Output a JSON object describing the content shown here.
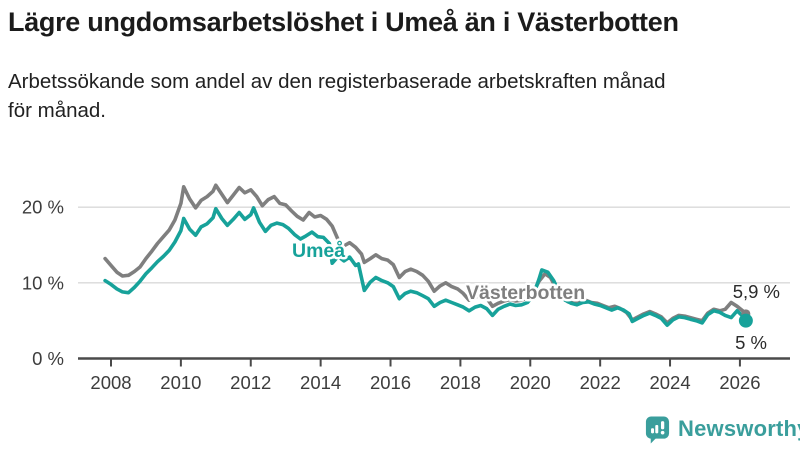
{
  "header": {
    "title": "Lägre ungdomsarbetslöshet i Umeå än i Västerbotten",
    "subtitle_line1": "Arbetssökande som andel av den registerbaserade arbetskraften månad",
    "subtitle_line2": "för månad."
  },
  "branding": {
    "logo_text": "Newsworthy",
    "logo_color": "#3a9e9c"
  },
  "colors": {
    "background": "#ffffff",
    "title_text": "#1b1b1b",
    "axis_text": "#3d3d3d",
    "axis_line": "#4a4a4a",
    "gridline": "#d9d9d9",
    "end_label_text": "#2b2b2b",
    "vasterbotten_line": "#7f7f7f",
    "umea_line": "#17a29a"
  },
  "chart_data": {
    "type": "line",
    "title": "Lägre ungdomsarbetslöshet i Umeå än i Västerbotten",
    "subtitle": "Arbetssökande som andel av den registerbaserade arbetskraften månad för månad.",
    "unit": "%",
    "x_axis": {
      "ticks": [
        2008,
        2010,
        2012,
        2014,
        2016,
        2018,
        2020,
        2022,
        2024,
        2026
      ],
      "range": [
        2007.1,
        2027.4
      ]
    },
    "y_axis": {
      "ticks": [
        {
          "value": 0,
          "label": "0 %"
        },
        {
          "value": 10,
          "label": "10 %"
        },
        {
          "value": 20,
          "label": "20 %"
        }
      ],
      "range": [
        0,
        24
      ],
      "grid": true
    },
    "legend_position": "inline-labels",
    "series": [
      {
        "name": "Västerbotten",
        "inline_label": "Västerbotten",
        "end_label": "5,9 %",
        "end_value": 5.9,
        "color": "#7f7f7f",
        "points": [
          [
            2007.83,
            13.2
          ],
          [
            2008.0,
            12.3
          ],
          [
            2008.17,
            11.4
          ],
          [
            2008.33,
            10.9
          ],
          [
            2008.5,
            11.0
          ],
          [
            2008.67,
            11.5
          ],
          [
            2008.83,
            12.1
          ],
          [
            2009.0,
            13.2
          ],
          [
            2009.17,
            14.2
          ],
          [
            2009.33,
            15.2
          ],
          [
            2009.5,
            16.1
          ],
          [
            2009.67,
            17.0
          ],
          [
            2009.83,
            18.3
          ],
          [
            2010.0,
            20.5
          ],
          [
            2010.08,
            22.7
          ],
          [
            2010.25,
            21.1
          ],
          [
            2010.42,
            19.9
          ],
          [
            2010.58,
            20.9
          ],
          [
            2010.75,
            21.4
          ],
          [
            2010.92,
            22.1
          ],
          [
            2011.0,
            22.9
          ],
          [
            2011.17,
            21.7
          ],
          [
            2011.33,
            20.6
          ],
          [
            2011.5,
            21.6
          ],
          [
            2011.67,
            22.6
          ],
          [
            2011.83,
            21.9
          ],
          [
            2012.0,
            22.3
          ],
          [
            2012.17,
            21.4
          ],
          [
            2012.33,
            20.2
          ],
          [
            2012.5,
            21.0
          ],
          [
            2012.67,
            21.4
          ],
          [
            2012.83,
            20.5
          ],
          [
            2013.0,
            20.3
          ],
          [
            2013.17,
            19.5
          ],
          [
            2013.33,
            18.8
          ],
          [
            2013.5,
            18.3
          ],
          [
            2013.67,
            19.3
          ],
          [
            2013.83,
            18.7
          ],
          [
            2014.0,
            18.9
          ],
          [
            2014.17,
            18.4
          ],
          [
            2014.33,
            17.5
          ],
          [
            2014.5,
            15.7
          ],
          [
            2014.67,
            14.9
          ],
          [
            2014.83,
            15.3
          ],
          [
            2015.0,
            14.7
          ],
          [
            2015.17,
            13.8
          ],
          [
            2015.25,
            12.7
          ],
          [
            2015.42,
            13.2
          ],
          [
            2015.58,
            13.7
          ],
          [
            2015.75,
            13.2
          ],
          [
            2015.92,
            13.0
          ],
          [
            2016.08,
            12.4
          ],
          [
            2016.25,
            10.7
          ],
          [
            2016.42,
            11.5
          ],
          [
            2016.58,
            11.8
          ],
          [
            2016.75,
            11.5
          ],
          [
            2016.92,
            11.0
          ],
          [
            2017.08,
            10.2
          ],
          [
            2017.25,
            8.9
          ],
          [
            2017.42,
            9.6
          ],
          [
            2017.58,
            10.0
          ],
          [
            2017.75,
            9.5
          ],
          [
            2017.92,
            9.2
          ],
          [
            2018.08,
            8.6
          ],
          [
            2018.25,
            7.7
          ],
          [
            2018.42,
            8.1
          ],
          [
            2018.58,
            8.4
          ],
          [
            2018.75,
            8.0
          ],
          [
            2018.92,
            6.9
          ],
          [
            2019.08,
            7.3
          ],
          [
            2019.25,
            7.6
          ],
          [
            2019.42,
            7.8
          ],
          [
            2019.58,
            7.6
          ],
          [
            2019.75,
            7.7
          ],
          [
            2019.92,
            8.0
          ],
          [
            2020.08,
            8.7
          ],
          [
            2020.25,
            10.2
          ],
          [
            2020.42,
            11.2
          ],
          [
            2020.58,
            10.7
          ],
          [
            2020.75,
            9.2
          ],
          [
            2020.92,
            8.1
          ],
          [
            2021.08,
            7.5
          ],
          [
            2021.25,
            7.3
          ],
          [
            2021.42,
            7.5
          ],
          [
            2021.58,
            7.7
          ],
          [
            2021.75,
            7.4
          ],
          [
            2021.92,
            7.3
          ],
          [
            2022.08,
            7.0
          ],
          [
            2022.25,
            6.7
          ],
          [
            2022.42,
            6.9
          ],
          [
            2022.58,
            6.6
          ],
          [
            2022.75,
            6.1
          ],
          [
            2022.92,
            5.1
          ],
          [
            2023.08,
            5.5
          ],
          [
            2023.25,
            5.9
          ],
          [
            2023.42,
            6.2
          ],
          [
            2023.58,
            5.9
          ],
          [
            2023.75,
            5.5
          ],
          [
            2023.92,
            4.7
          ],
          [
            2024.08,
            5.3
          ],
          [
            2024.25,
            5.7
          ],
          [
            2024.42,
            5.6
          ],
          [
            2024.58,
            5.4
          ],
          [
            2024.75,
            5.2
          ],
          [
            2024.92,
            5.0
          ],
          [
            2025.08,
            6.0
          ],
          [
            2025.25,
            6.5
          ],
          [
            2025.42,
            6.3
          ],
          [
            2025.58,
            6.5
          ],
          [
            2025.75,
            7.4
          ],
          [
            2025.92,
            6.9
          ],
          [
            2026.08,
            6.3
          ],
          [
            2026.17,
            5.9
          ]
        ]
      },
      {
        "name": "Umeå",
        "inline_label": "Umeå",
        "end_label": "5 %",
        "end_value": 5.0,
        "color": "#17a29a",
        "points": [
          [
            2007.83,
            10.3
          ],
          [
            2008.0,
            9.8
          ],
          [
            2008.17,
            9.2
          ],
          [
            2008.33,
            8.8
          ],
          [
            2008.5,
            8.7
          ],
          [
            2008.67,
            9.4
          ],
          [
            2008.83,
            10.2
          ],
          [
            2009.0,
            11.2
          ],
          [
            2009.17,
            12.0
          ],
          [
            2009.33,
            12.8
          ],
          [
            2009.5,
            13.5
          ],
          [
            2009.67,
            14.3
          ],
          [
            2009.83,
            15.4
          ],
          [
            2010.0,
            16.9
          ],
          [
            2010.08,
            18.5
          ],
          [
            2010.25,
            17.1
          ],
          [
            2010.42,
            16.3
          ],
          [
            2010.58,
            17.4
          ],
          [
            2010.75,
            17.8
          ],
          [
            2010.92,
            18.6
          ],
          [
            2011.0,
            19.8
          ],
          [
            2011.17,
            18.5
          ],
          [
            2011.33,
            17.6
          ],
          [
            2011.5,
            18.4
          ],
          [
            2011.67,
            19.3
          ],
          [
            2011.83,
            18.4
          ],
          [
            2012.0,
            19.0
          ],
          [
            2012.08,
            19.9
          ],
          [
            2012.25,
            18.0
          ],
          [
            2012.42,
            16.8
          ],
          [
            2012.58,
            17.6
          ],
          [
            2012.75,
            17.9
          ],
          [
            2012.92,
            17.7
          ],
          [
            2013.08,
            17.2
          ],
          [
            2013.25,
            16.4
          ],
          [
            2013.42,
            15.8
          ],
          [
            2013.58,
            16.2
          ],
          [
            2013.75,
            16.7
          ],
          [
            2013.92,
            16.1
          ],
          [
            2014.08,
            16.0
          ],
          [
            2014.25,
            15.2
          ],
          [
            2014.33,
            12.6
          ],
          [
            2014.5,
            13.5
          ],
          [
            2014.67,
            12.9
          ],
          [
            2014.83,
            13.4
          ],
          [
            2015.0,
            12.3
          ],
          [
            2015.08,
            12.5
          ],
          [
            2015.25,
            9.0
          ],
          [
            2015.42,
            10.1
          ],
          [
            2015.58,
            10.7
          ],
          [
            2015.75,
            10.3
          ],
          [
            2015.92,
            10.0
          ],
          [
            2016.08,
            9.5
          ],
          [
            2016.25,
            7.9
          ],
          [
            2016.42,
            8.6
          ],
          [
            2016.58,
            8.9
          ],
          [
            2016.75,
            8.7
          ],
          [
            2016.92,
            8.3
          ],
          [
            2017.08,
            7.9
          ],
          [
            2017.25,
            6.9
          ],
          [
            2017.42,
            7.4
          ],
          [
            2017.58,
            7.7
          ],
          [
            2017.75,
            7.4
          ],
          [
            2017.92,
            7.1
          ],
          [
            2018.08,
            6.8
          ],
          [
            2018.25,
            6.3
          ],
          [
            2018.42,
            6.8
          ],
          [
            2018.58,
            7.0
          ],
          [
            2018.75,
            6.6
          ],
          [
            2018.92,
            5.7
          ],
          [
            2019.08,
            6.5
          ],
          [
            2019.25,
            6.9
          ],
          [
            2019.42,
            7.2
          ],
          [
            2019.58,
            7.0
          ],
          [
            2019.75,
            7.1
          ],
          [
            2019.92,
            7.4
          ],
          [
            2020.08,
            8.3
          ],
          [
            2020.25,
            10.5
          ],
          [
            2020.33,
            11.7
          ],
          [
            2020.5,
            11.4
          ],
          [
            2020.67,
            10.3
          ],
          [
            2020.83,
            8.7
          ],
          [
            2021.0,
            7.7
          ],
          [
            2021.17,
            7.3
          ],
          [
            2021.33,
            7.1
          ],
          [
            2021.5,
            7.4
          ],
          [
            2021.67,
            7.5
          ],
          [
            2021.83,
            7.2
          ],
          [
            2022.0,
            7.0
          ],
          [
            2022.17,
            6.7
          ],
          [
            2022.33,
            6.4
          ],
          [
            2022.5,
            6.7
          ],
          [
            2022.67,
            6.4
          ],
          [
            2022.83,
            5.9
          ],
          [
            2022.92,
            4.9
          ],
          [
            2023.08,
            5.3
          ],
          [
            2023.25,
            5.7
          ],
          [
            2023.42,
            6.0
          ],
          [
            2023.58,
            5.7
          ],
          [
            2023.75,
            5.3
          ],
          [
            2023.92,
            4.4
          ],
          [
            2024.08,
            5.1
          ],
          [
            2024.25,
            5.5
          ],
          [
            2024.42,
            5.4
          ],
          [
            2024.58,
            5.2
          ],
          [
            2024.75,
            5.0
          ],
          [
            2024.92,
            4.7
          ],
          [
            2025.08,
            5.8
          ],
          [
            2025.25,
            6.3
          ],
          [
            2025.42,
            6.1
          ],
          [
            2025.58,
            5.7
          ],
          [
            2025.75,
            5.4
          ],
          [
            2025.92,
            6.3
          ],
          [
            2026.08,
            5.6
          ],
          [
            2026.17,
            5.0
          ]
        ]
      }
    ]
  }
}
